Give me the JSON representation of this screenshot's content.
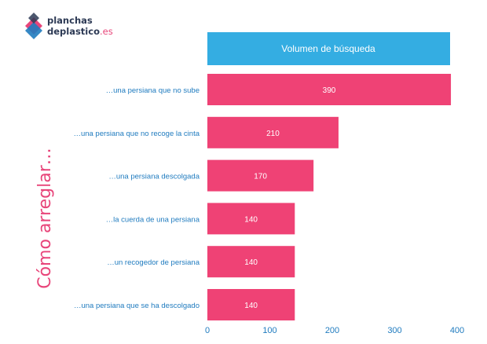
{
  "brand": {
    "line1": "planchas",
    "line2": "deplastico",
    "tld": ".es",
    "logo_colors": [
      "#e8457a",
      "#1f7bbf",
      "#2d3a55"
    ]
  },
  "chart_data": {
    "type": "bar",
    "orientation": "horizontal",
    "title": "Volumen de búsqueda",
    "ylabel": "Cómo arreglar…",
    "xlabel": "",
    "categories": [
      "…una persiana que no sube",
      "…una persiana que no recoge la cinta",
      "…una persiana descolgada",
      "…la cuerda de una persiana",
      "…un recogedor de persiana",
      "…una persiana que se ha descolgado"
    ],
    "values": [
      390,
      210,
      170,
      140,
      140,
      140
    ],
    "xlim": [
      0,
      400
    ],
    "xticks": [
      0,
      100,
      200,
      300,
      400
    ],
    "grid": false,
    "colors": {
      "bar": "#ef4275",
      "header": "#34ade2",
      "category_text": "#1f7bbf",
      "axis_text": "#1f7bbf",
      "ylabel_text": "#e8457a"
    }
  }
}
